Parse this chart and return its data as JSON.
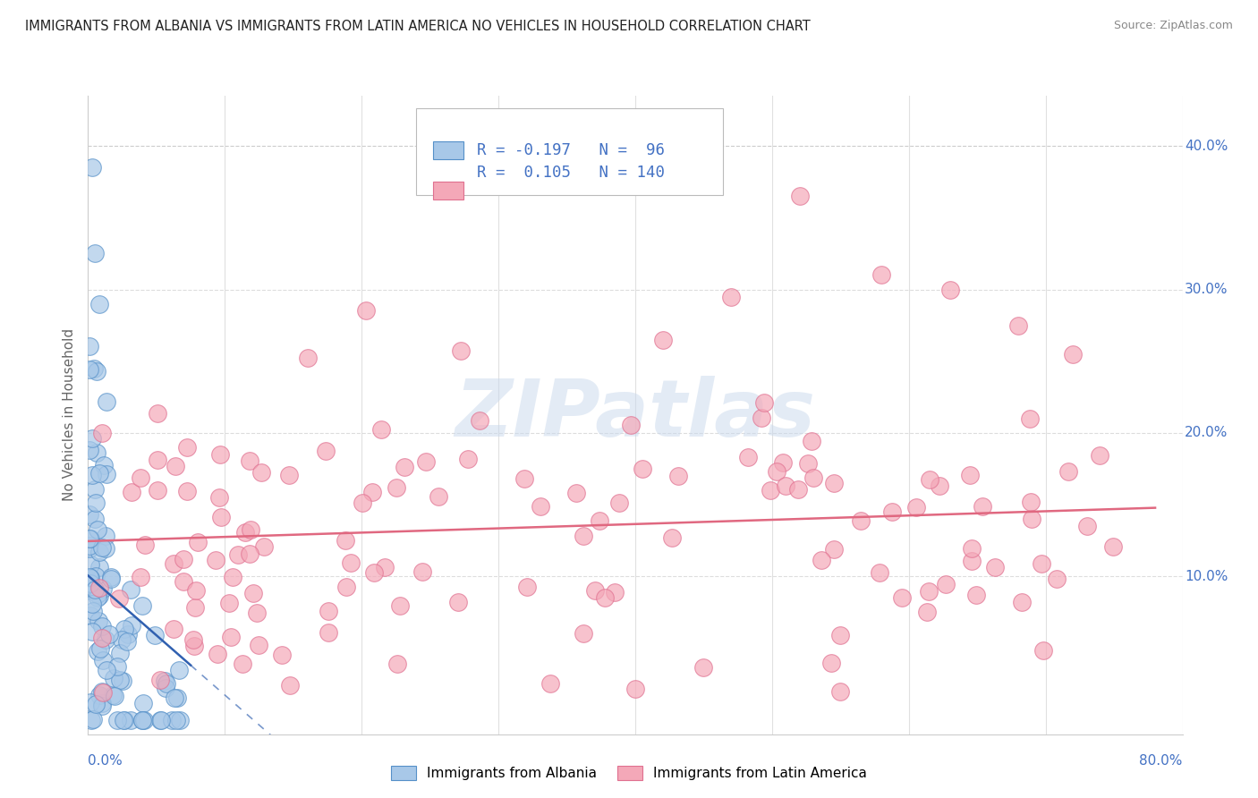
{
  "title": "IMMIGRANTS FROM ALBANIA VS IMMIGRANTS FROM LATIN AMERICA NO VEHICLES IN HOUSEHOLD CORRELATION CHART",
  "source": "Source: ZipAtlas.com",
  "ylabel": "No Vehicles in Household",
  "ytick_vals": [
    0.0,
    0.1,
    0.2,
    0.3,
    0.4
  ],
  "ytick_labels_right": [
    "",
    "10.0%",
    "20.0%",
    "30.0%",
    "40.0%"
  ],
  "xlim": [
    0.0,
    0.8
  ],
  "ylim": [
    -0.01,
    0.435
  ],
  "albania_R": -0.197,
  "albania_N": 96,
  "latam_R": 0.105,
  "latam_N": 140,
  "albania_color": "#a8c8e8",
  "latam_color": "#f4a8b8",
  "albania_edge_color": "#5590c8",
  "latam_edge_color": "#e07090",
  "albania_line_color": "#3060b0",
  "latam_line_color": "#e06880",
  "legend_label_albania": "Immigrants from Albania",
  "legend_label_latam": "Immigrants from Latin America",
  "watermark": "ZIPatlas",
  "background_color": "#ffffff",
  "title_color": "#222222",
  "source_color": "#888888",
  "axis_label_color": "#4472c4",
  "ylabel_color": "#666666"
}
